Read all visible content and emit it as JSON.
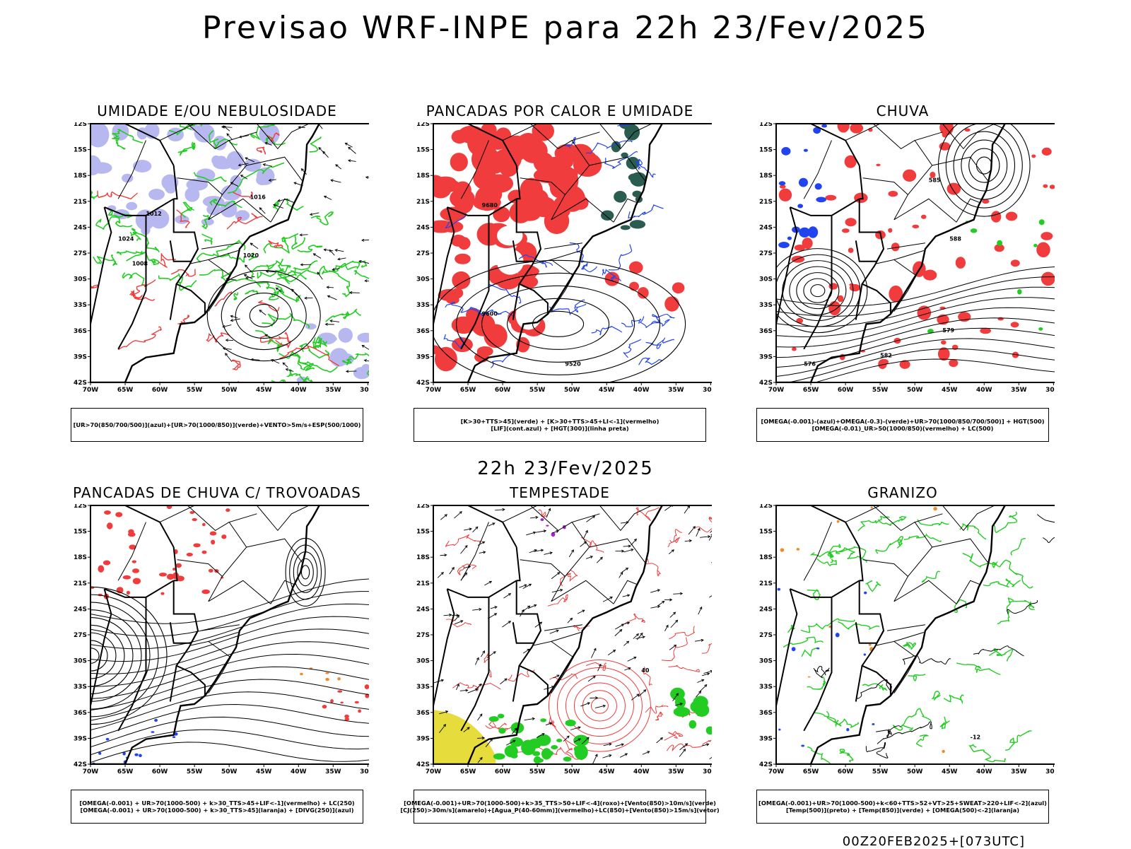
{
  "header": {
    "title": "Previsao WRF-INPE  para 22h 23/Fev/2025",
    "mid_date": "22h 23/Fev/2025",
    "footer_stamp": "00Z20FEB2025+[073UTC]"
  },
  "axes": {
    "lat_labels": [
      "12S",
      "15S",
      "18S",
      "21S",
      "24S",
      "27S",
      "30S",
      "33S",
      "36S",
      "39S",
      "42S"
    ],
    "lon_labels": [
      "70W",
      "65W",
      "60W",
      "55W",
      "50W",
      "45W",
      "40W",
      "35W",
      "30W"
    ]
  },
  "colors": {
    "red": "#f03c3c",
    "green": "#22cc22",
    "blue": "#2244ee",
    "lavender": "#b8b8f0",
    "darkgreen": "#2a5c50",
    "yellow": "#e6dc3c",
    "orange": "#f08a2a",
    "purple": "#aa22cc"
  },
  "panels": [
    {
      "id": "umidade",
      "title": "UMIDADE E/OU NEBULOSIDADE",
      "legend": [
        "[UR>70(850/700/500)](azul)+[UR>70(1000/850)](verde)+VENTO>5m/s+ESP(500/1000)"
      ],
      "contour_labels": [
        "1012",
        "1016",
        "1020",
        "1008",
        "1024"
      ]
    },
    {
      "id": "pancadas",
      "title": "PANCADAS POR CALOR E UMIDADE",
      "legend": [
        "[K>30+TTS>45](verde) + [K>30+TTS>45+LI<-1](vermelho)",
        "[LIF](cont.azul) + [HGT(300)](linha preta)"
      ],
      "contour_labels": [
        "9680",
        "9600",
        "9520"
      ]
    },
    {
      "id": "chuva",
      "title": "CHUVA",
      "legend": [
        "[OMEGA(-0.001)-(azul)+OMEGA(-0.3)-(verde)+UR>70(1000/850/700/500)] + HGT(500)",
        "[OMEGA(-0.01)_UR>50(1000/850)(vermelho) + LC(500)"
      ],
      "contour_labels": [
        "585",
        "588",
        "579",
        "582",
        "576"
      ]
    },
    {
      "id": "trovoadas",
      "title": "PANCADAS DE CHUVA C/ TROVOADAS",
      "legend": [
        "[OMEGA(-0.001) + UR>70(1000-500) + k>30_TTS>45+LIF<-1](vermelho) + LC(250)",
        "[OMEGA(-0.001) + UR>70(1000-500) + k>30_TTS>45](laranja) + [DIVG(250)](azul)"
      ],
      "contour_labels": []
    },
    {
      "id": "tempestade",
      "title": "TEMPESTADE",
      "legend": [
        "[OMEGA(-0.001)+UR>70(1000-500)+k>35_TTS>50+LIF<-4](roxo)+[Vento(850)>10m/s](verde)",
        "[CJ(250)>30m/s](amarelo)+[Agua_P(40-60mm)](vermelho)+LC(850)+[Vento(850)>15m/s](vetor)"
      ],
      "contour_labels": [
        "40"
      ]
    },
    {
      "id": "granizo",
      "title": "GRANIZO",
      "legend": [
        "[OMEGA(-0.001)+UR>70(1000-500)+k<60+TTS>52+VT>25+SWEAT>220+LIF<-2](azul)",
        "[Temp(500)](preto) + [Temp(850)](verde) + [OMEGA(500)<-2](laranja)"
      ],
      "contour_labels": [
        "-12"
      ]
    }
  ]
}
